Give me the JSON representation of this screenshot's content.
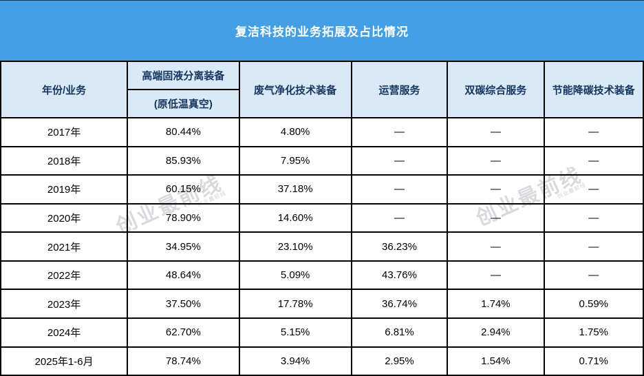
{
  "title": "复洁科技的业务拓展及占比情况",
  "watermark": {
    "text": "创业最前线",
    "subtext": "创业最前线"
  },
  "colors": {
    "title_bg": "#459FE4",
    "header_bg": "#D9E9F8",
    "header_text": "#17365C",
    "border": "#000000"
  },
  "table": {
    "corner_header": "年份/业务",
    "col1_header_line1": "高端固液分离装备",
    "col1_header_line2": "(原低温真空)",
    "headers": [
      "废气净化技术装备",
      "运营服务",
      "双碳综合服务",
      "节能降碳技术装备"
    ],
    "rows": [
      {
        "year": "2017年",
        "values": [
          "80.44%",
          "4.80%",
          "—",
          "—",
          "—"
        ]
      },
      {
        "year": "2018年",
        "values": [
          "85.93%",
          "7.95%",
          "—",
          "—",
          "—"
        ]
      },
      {
        "year": "2019年",
        "values": [
          "60.15%",
          "37.18%",
          "—",
          "—",
          "—"
        ]
      },
      {
        "year": "2020年",
        "values": [
          "78.90%",
          "14.60%",
          "—",
          "—",
          "—"
        ]
      },
      {
        "year": "2021年",
        "values": [
          "34.95%",
          "23.10%",
          "36.23%",
          "—",
          "—"
        ]
      },
      {
        "year": "2022年",
        "values": [
          "48.64%",
          "5.09%",
          "43.76%",
          "—",
          "—"
        ]
      },
      {
        "year": "2023年",
        "values": [
          "37.50%",
          "17.78%",
          "36.74%",
          "1.74%",
          "0.59%"
        ]
      },
      {
        "year": "2024年",
        "values": [
          "62.70%",
          "5.15%",
          "6.81%",
          "2.94%",
          "1.75%"
        ]
      },
      {
        "year": "2025年1-6月",
        "values": [
          "78.74%",
          "3.94%",
          "2.95%",
          "1.54%",
          "0.71%"
        ]
      }
    ]
  },
  "chart_data": {
    "type": "table",
    "title": "复洁科技的业务拓展及占比情况",
    "columns": [
      "年份/业务",
      "高端固液分离装备 (原低温真空)",
      "废气净化技术装备",
      "运营服务",
      "双碳综合服务",
      "节能降碳技术装备"
    ],
    "rows": [
      [
        "2017年",
        "80.44%",
        "4.80%",
        "—",
        "—",
        "—"
      ],
      [
        "2018年",
        "85.93%",
        "7.95%",
        "—",
        "—",
        "—"
      ],
      [
        "2019年",
        "60.15%",
        "37.18%",
        "—",
        "—",
        "—"
      ],
      [
        "2020年",
        "78.90%",
        "14.60%",
        "—",
        "—",
        "—"
      ],
      [
        "2021年",
        "34.95%",
        "23.10%",
        "36.23%",
        "—",
        "—"
      ],
      [
        "2022年",
        "48.64%",
        "5.09%",
        "43.76%",
        "—",
        "—"
      ],
      [
        "2023年",
        "37.50%",
        "17.78%",
        "36.74%",
        "1.74%",
        "0.59%"
      ],
      [
        "2024年",
        "62.70%",
        "5.15%",
        "6.81%",
        "2.94%",
        "1.75%"
      ],
      [
        "2025年1-6月",
        "78.74%",
        "3.94%",
        "2.95%",
        "1.54%",
        "0.71%"
      ]
    ]
  }
}
